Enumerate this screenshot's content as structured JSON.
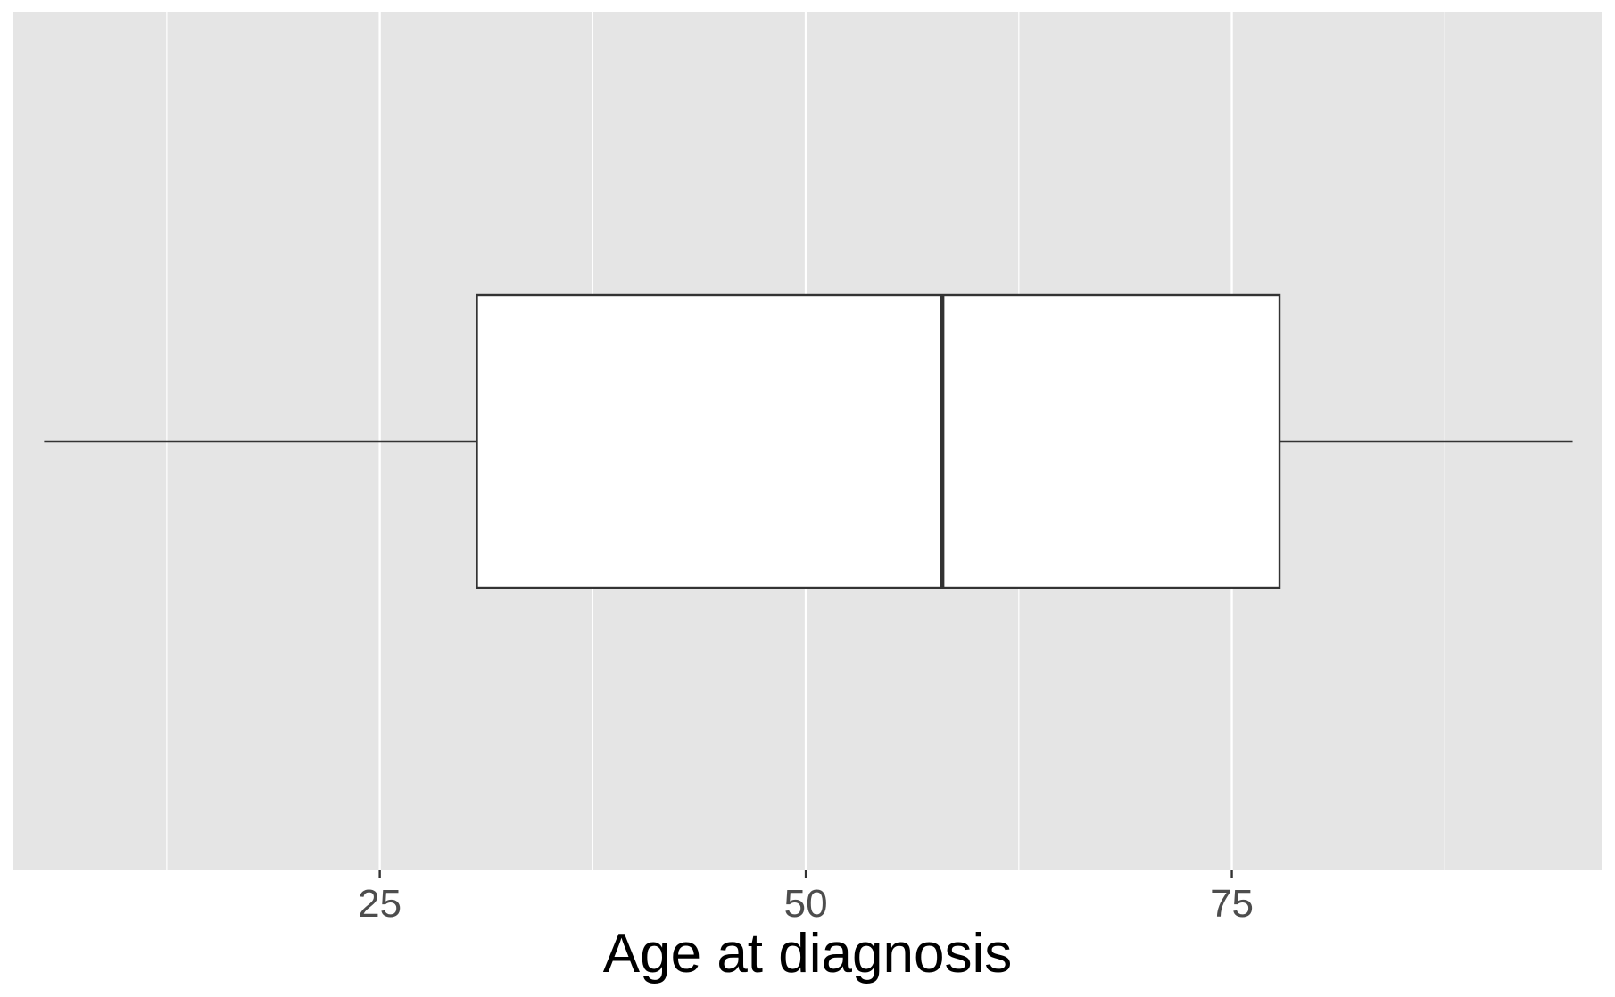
{
  "chart_data": {
    "type": "boxplot",
    "orientation": "horizontal",
    "title": "",
    "xlabel": "Age at diagnosis",
    "ylabel": "",
    "xlim": [
      3.5,
      96.7
    ],
    "xticks": [
      {
        "value": 25,
        "label": "25"
      },
      {
        "value": 50,
        "label": "50"
      },
      {
        "value": 75,
        "label": "75"
      }
    ],
    "minor_gridlines": [
      12.5,
      37.5,
      62.5,
      87.5
    ],
    "grid": true,
    "legend": "none",
    "box": {
      "whisker_low": 5.3,
      "q1": 30.7,
      "median": 58.0,
      "q3": 77.8,
      "whisker_high": 95.0
    },
    "colors": {
      "panel_background": "#e5e5e5",
      "gridline": "#ffffff",
      "box_fill": "#ffffff",
      "box_stroke": "#333333"
    }
  }
}
